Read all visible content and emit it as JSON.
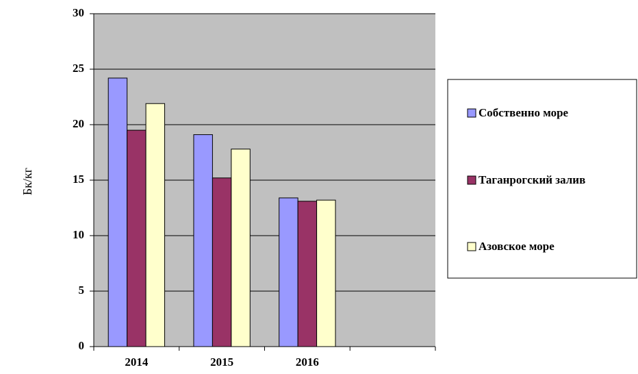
{
  "chart_data": {
    "type": "bar",
    "title": "",
    "xlabel": "",
    "ylabel": "Бк/кг",
    "categories": [
      "2014",
      "2015",
      "2016",
      ""
    ],
    "series": [
      {
        "name": "Собственно море",
        "values": [
          24.2,
          19.1,
          13.4,
          null
        ],
        "color": "#9999ff"
      },
      {
        "name": "Таганрогский залив",
        "values": [
          19.5,
          15.2,
          13.1,
          null
        ],
        "color": "#993366"
      },
      {
        "name": "Азовское море",
        "values": [
          21.9,
          17.8,
          13.2,
          null
        ],
        "color": "#ffffcc"
      }
    ],
    "ylim": [
      0,
      30
    ],
    "yticks": [
      0,
      5,
      10,
      15,
      20,
      25,
      30
    ],
    "grid": true,
    "plot_background": "#c0c0c0",
    "legend_position": "right"
  }
}
